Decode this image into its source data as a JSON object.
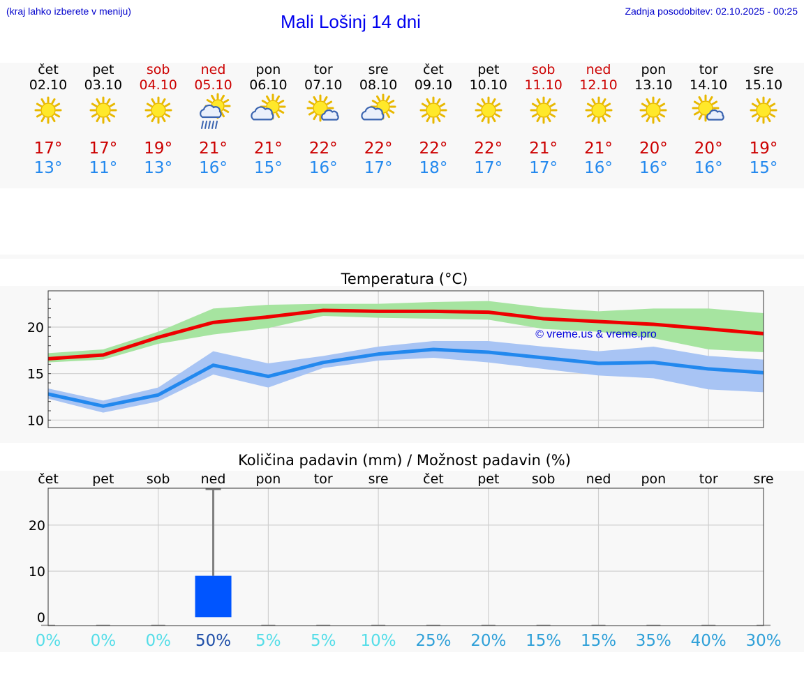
{
  "header": {
    "hint": "(kraj lahko izberete v meniju)",
    "title": "Mali Lošinj 14 dni",
    "updated": "Zadnja posodobitev: 02.10.2025 - 00:25"
  },
  "days": [
    {
      "name": "čet",
      "date": "02.10",
      "icon": "sun",
      "weekend": false,
      "high": "17°",
      "low": "13°"
    },
    {
      "name": "pet",
      "date": "03.10",
      "icon": "sun",
      "weekend": false,
      "high": "17°",
      "low": "11°"
    },
    {
      "name": "sob",
      "date": "04.10",
      "icon": "sun",
      "weekend": true,
      "high": "19°",
      "low": "13°"
    },
    {
      "name": "ned",
      "date": "05.10",
      "icon": "sun-cloud-rain",
      "weekend": true,
      "high": "21°",
      "low": "16°"
    },
    {
      "name": "pon",
      "date": "06.10",
      "icon": "sun-cloud",
      "weekend": false,
      "high": "21°",
      "low": "15°"
    },
    {
      "name": "tor",
      "date": "07.10",
      "icon": "sun-small-cloud",
      "weekend": false,
      "high": "22°",
      "low": "16°"
    },
    {
      "name": "sre",
      "date": "08.10",
      "icon": "sun-cloud",
      "weekend": false,
      "high": "22°",
      "low": "17°"
    },
    {
      "name": "čet",
      "date": "09.10",
      "icon": "sun",
      "weekend": false,
      "high": "22°",
      "low": "18°"
    },
    {
      "name": "pet",
      "date": "10.10",
      "icon": "sun",
      "weekend": false,
      "high": "22°",
      "low": "17°"
    },
    {
      "name": "sob",
      "date": "11.10",
      "icon": "sun",
      "weekend": true,
      "high": "21°",
      "low": "17°"
    },
    {
      "name": "ned",
      "date": "12.10",
      "icon": "sun",
      "weekend": true,
      "high": "21°",
      "low": "16°"
    },
    {
      "name": "pon",
      "date": "13.10",
      "icon": "sun",
      "weekend": false,
      "high": "20°",
      "low": "16°"
    },
    {
      "name": "tor",
      "date": "14.10",
      "icon": "sun-small-cloud",
      "weekend": false,
      "high": "20°",
      "low": "16°"
    },
    {
      "name": "sre",
      "date": "15.10",
      "icon": "sun",
      "weekend": false,
      "high": "19°",
      "low": "15°"
    }
  ],
  "colors": {
    "high": "#ee0000",
    "high_band": "#a6e4a0",
    "low": "#2288ee",
    "low_band": "#a8c4f4",
    "bar": "#0055ff",
    "error": "#808080",
    "weekend": "#cc0000",
    "title": "#0000ee"
  },
  "chart_data": [
    {
      "type": "line",
      "title": "Temperatura (°C)",
      "watermark": "© vreme.us & vreme.pro",
      "categories": [
        "02.10",
        "03.10",
        "04.10",
        "05.10",
        "06.10",
        "07.10",
        "08.10",
        "09.10",
        "10.10",
        "11.10",
        "12.10",
        "13.10",
        "14.10",
        "15.10"
      ],
      "ylim": [
        9.2,
        23.9
      ],
      "yticks": [
        10,
        15,
        20
      ],
      "series": [
        {
          "name": "max",
          "values": [
            16.6,
            17.0,
            18.9,
            20.5,
            21.1,
            21.8,
            21.7,
            21.7,
            21.6,
            20.9,
            20.6,
            20.3,
            19.8,
            19.3
          ],
          "band_upper": [
            17.2,
            17.6,
            19.5,
            22.0,
            22.4,
            22.5,
            22.5,
            22.7,
            22.8,
            22.1,
            21.7,
            22.0,
            22.0,
            21.5
          ],
          "band_lower": [
            16.2,
            16.5,
            18.2,
            19.2,
            19.9,
            21.2,
            21.0,
            20.9,
            20.8,
            19.8,
            19.5,
            18.8,
            17.6,
            17.3
          ]
        },
        {
          "name": "min",
          "values": [
            12.8,
            11.5,
            12.7,
            15.9,
            14.7,
            16.2,
            17.1,
            17.6,
            17.3,
            16.7,
            16.1,
            16.2,
            15.5,
            15.1
          ],
          "band_upper": [
            13.4,
            12.1,
            13.5,
            17.4,
            16.1,
            16.9,
            17.9,
            18.5,
            18.5,
            17.9,
            17.4,
            17.9,
            16.9,
            16.5
          ],
          "band_lower": [
            12.3,
            10.8,
            12.0,
            14.9,
            13.5,
            15.6,
            16.4,
            16.7,
            16.2,
            15.5,
            14.8,
            14.5,
            13.3,
            13.0
          ]
        }
      ]
    },
    {
      "type": "bar",
      "title": "Količina padavin (mm) / Možnost padavin (%)",
      "categories": [
        "čet",
        "pet",
        "sob",
        "ned",
        "pon",
        "tor",
        "sre",
        "čet",
        "pet",
        "sob",
        "ned",
        "pon",
        "tor",
        "sre"
      ],
      "ylim": [
        -1.8,
        28.0
      ],
      "yticks": [
        0,
        10,
        20
      ],
      "values": [
        0,
        0,
        0,
        9,
        0,
        0,
        0,
        0,
        0,
        0,
        0,
        0,
        0,
        0
      ],
      "error_high": [
        0,
        0,
        0,
        27.8,
        0,
        0,
        0,
        0,
        0,
        0,
        0,
        0,
        0,
        0
      ],
      "probability": [
        "0%",
        "0%",
        "0%",
        "50%",
        "5%",
        "5%",
        "10%",
        "25%",
        "20%",
        "15%",
        "15%",
        "35%",
        "40%",
        "30%"
      ],
      "probability_values": [
        0,
        0,
        0,
        50,
        5,
        5,
        10,
        25,
        20,
        15,
        15,
        35,
        40,
        30
      ]
    }
  ]
}
